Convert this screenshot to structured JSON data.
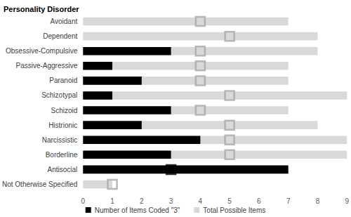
{
  "chart_data": {
    "type": "bar",
    "orientation": "horizontal",
    "ylabel": "Personality Disorder",
    "categories": [
      "Avoidant",
      "Dependent",
      "Obsessive-Compulsive",
      "Passive-Aggressive",
      "Paranoid",
      "Schizotypal",
      "Schizoid",
      "Histrionic",
      "Narcissistic",
      "Borderline",
      "Antisocial",
      "Not Otherwise Specified"
    ],
    "series": [
      {
        "name": "Total Possible Items",
        "type": "bar",
        "color": "#d9d9d9",
        "values": [
          7,
          8,
          8,
          7,
          7,
          9,
          7,
          8,
          9,
          9,
          7,
          1
        ]
      },
      {
        "name": "Number of Items Coded \"3\"",
        "type": "bar",
        "color": "#000000",
        "values": [
          0,
          0,
          3,
          1,
          2,
          1,
          3,
          2,
          4,
          3,
          7,
          0
        ]
      },
      {
        "type": "scatter",
        "marker": "square",
        "colors": [
          "#a6a6a6",
          "#a6a6a6",
          "#a6a6a6",
          "#a6a6a6",
          "#a6a6a6",
          "#a6a6a6",
          "#a6a6a6",
          "#a6a6a6",
          "#a6a6a6",
          "#a6a6a6",
          "#000000",
          "#a6a6a6"
        ],
        "values": [
          4,
          5,
          4,
          4,
          4,
          5,
          4,
          5,
          5,
          5,
          3,
          1
        ]
      }
    ],
    "xlim": [
      0,
      9
    ],
    "xticks": [
      0,
      1,
      2,
      3,
      4,
      5,
      6,
      7,
      8,
      9
    ],
    "grid": false,
    "legend": "bottom"
  }
}
